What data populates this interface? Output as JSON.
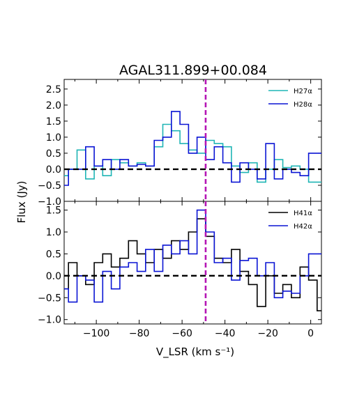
{
  "chart_data": [
    {
      "type": "line",
      "title": "AGAL311.899+00.084",
      "ylim": [
        -1.0,
        2.8
      ],
      "xlim": [
        -115,
        5
      ],
      "yticks": [
        -1.0,
        -0.5,
        0.0,
        0.5,
        1.0,
        1.5,
        2.0,
        2.5
      ],
      "ytick_labels": [
        "−1.0",
        "−0.5",
        "0.0",
        "0.5",
        "1.0",
        "1.5",
        "2.0",
        "2.5"
      ],
      "grid": false,
      "legend_position": "top-right",
      "reference_lines": {
        "zero_flux": 0.0,
        "vlsr": -49
      },
      "series": [
        {
          "name": "H27α",
          "color": "#1fb5b5",
          "x": [
            -115,
            -111,
            -107,
            -103,
            -99,
            -95,
            -91,
            -87,
            -83,
            -79,
            -75,
            -71,
            -67,
            -63,
            -59,
            -55,
            -51,
            -47,
            -43,
            -39,
            -35,
            -31,
            -27,
            -23,
            -19,
            -15,
            -11,
            -7,
            -3,
            1,
            5
          ],
          "y": [
            -0.2,
            0.0,
            0.6,
            -0.3,
            0.1,
            -0.2,
            0.3,
            0.2,
            0.1,
            0.2,
            0.1,
            0.7,
            1.4,
            1.2,
            0.8,
            0.6,
            0.5,
            0.9,
            0.8,
            0.7,
            0.1,
            -0.1,
            0.2,
            -0.4,
            0.0,
            0.3,
            0.05,
            0.1,
            0.0,
            -0.4,
            -0.4
          ]
        },
        {
          "name": "H28α",
          "color": "#0a14d4",
          "x": [
            -115,
            -111,
            -107,
            -103,
            -99,
            -95,
            -91,
            -87,
            -83,
            -79,
            -75,
            -71,
            -67,
            -63,
            -59,
            -55,
            -51,
            -47,
            -43,
            -39,
            -35,
            -31,
            -27,
            -23,
            -19,
            -15,
            -11,
            -7,
            -3,
            1,
            5
          ],
          "y": [
            -0.5,
            0.0,
            0.0,
            0.7,
            0.1,
            0.3,
            0.0,
            0.3,
            0.1,
            0.15,
            0.1,
            0.9,
            1.0,
            1.8,
            1.4,
            0.5,
            1.0,
            0.3,
            0.7,
            0.2,
            -0.4,
            0.2,
            0.0,
            -0.3,
            0.8,
            -0.3,
            0.0,
            -0.1,
            -0.2,
            0.5,
            0.5
          ]
        }
      ]
    },
    {
      "type": "line",
      "xlabel": "V_LSR (km s⁻¹)",
      "ylabel": "Flux (Jy)",
      "ylim": [
        -1.1,
        1.7
      ],
      "xlim": [
        -115,
        5
      ],
      "yticks": [
        -1.0,
        -0.5,
        0.0,
        0.5,
        1.0,
        1.5
      ],
      "ytick_labels": [
        "−1.0",
        "−0.5",
        "0.0",
        "0.5",
        "1.0",
        "1.5"
      ],
      "xticks": [
        -100,
        -80,
        -60,
        -40,
        -20,
        0
      ],
      "xtick_labels": [
        "−100",
        "−80",
        "−60",
        "−40",
        "−20",
        "0"
      ],
      "grid": false,
      "legend_position": "top-right",
      "reference_lines": {
        "zero_flux": 0.0,
        "vlsr": -49
      },
      "series": [
        {
          "name": "H41α",
          "color": "#000000",
          "x": [
            -115,
            -111,
            -107,
            -103,
            -99,
            -95,
            -91,
            -87,
            -83,
            -79,
            -75,
            -71,
            -67,
            -63,
            -59,
            -55,
            -51,
            -47,
            -43,
            -39,
            -35,
            -31,
            -27,
            -23,
            -19,
            -15,
            -11,
            -7,
            -3,
            1,
            5
          ],
          "y": [
            -0.3,
            0.3,
            0.0,
            -0.2,
            0.3,
            0.5,
            0.2,
            0.4,
            0.8,
            0.5,
            0.3,
            0.6,
            0.4,
            0.8,
            0.6,
            1.0,
            1.3,
            0.9,
            0.4,
            0.3,
            0.6,
            0.1,
            -0.2,
            -0.7,
            0.0,
            -0.4,
            -0.2,
            -0.5,
            0.2,
            -0.1,
            -0.8
          ]
        },
        {
          "name": "H42α",
          "color": "#0a14d4",
          "x": [
            -115,
            -111,
            -107,
            -103,
            -99,
            -95,
            -91,
            -87,
            -83,
            -79,
            -75,
            -71,
            -67,
            -63,
            -59,
            -55,
            -51,
            -47,
            -43,
            -39,
            -35,
            -31,
            -27,
            -23,
            -19,
            -15,
            -11,
            -7,
            -3,
            1,
            5
          ],
          "y": [
            -0.3,
            -0.6,
            0.0,
            -0.1,
            -0.6,
            0.1,
            -0.3,
            0.2,
            0.3,
            0.1,
            0.6,
            0.1,
            0.7,
            0.5,
            0.8,
            0.5,
            1.5,
            1.0,
            0.3,
            0.4,
            -0.1,
            0.35,
            0.4,
            0.0,
            0.3,
            -0.5,
            -0.35,
            -0.4,
            0.0,
            0.5,
            0.5
          ]
        }
      ]
    }
  ]
}
